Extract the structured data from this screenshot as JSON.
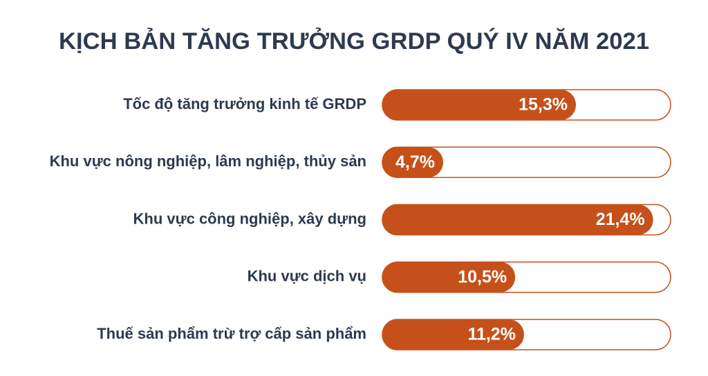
{
  "chart_data": {
    "type": "bar",
    "orientation": "horizontal",
    "title": "KỊCH BẢN TĂNG TRƯỞNG GRDP QUÝ IV NĂM 2021",
    "categories": [
      "Tốc độ tăng trưởng kinh tế GRDP",
      "Khu vực nông nghiệp, lâm nghiệp, thủy sản",
      "Khu vực công nghiệp, xây dựng",
      "Khu vực dịch vụ",
      "Thuế sản phẩm trừ trợ cấp sản phẩm"
    ],
    "values": [
      15.3,
      4.7,
      21.4,
      10.5,
      11.2
    ],
    "value_labels": [
      "15,3%",
      "4,7%",
      "21,4%",
      "10,5%",
      "11,2%"
    ],
    "color": "#c6501a"
  }
}
